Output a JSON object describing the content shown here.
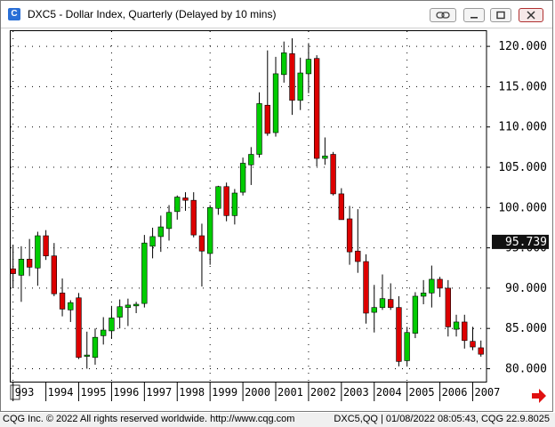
{
  "window": {
    "title": "DXC5 - Dollar Index, Quarterly (Delayed by 10 mins)",
    "icons": [
      "chain-link-icon",
      "minimize-icon",
      "restore-icon",
      "close-icon"
    ]
  },
  "footer": {
    "copyright": "CQG Inc. © 2022 All rights reserved worldwide. http://www.cqg.com",
    "status": "DXC5,QQ | 01/08/2022 08:05:43, CQG 22.9.8025"
  },
  "chart_data": {
    "type": "candlestick",
    "title": "DXC5 - Dollar Index, Quarterly (Delayed by 10 mins)",
    "y_ticks": [
      "120.000",
      "115.000",
      "110.000",
      "105.000",
      "100.000",
      "95.000",
      "90.000",
      "85.000",
      "80.000"
    ],
    "y_tick_values": [
      120,
      115,
      110,
      105,
      100,
      95,
      90,
      85,
      80
    ],
    "ylim": [
      78.4,
      122.0
    ],
    "x_tick_labels": [
      "993",
      "1994",
      "1995",
      "1996",
      "1997",
      "1998",
      "1999",
      "2000",
      "2001",
      "2002",
      "2003",
      "2004",
      "2005",
      "2006",
      "2007"
    ],
    "x_tick_years": [
      1993,
      1994,
      1995,
      1996,
      1997,
      1998,
      1999,
      2000,
      2001,
      2002,
      2003,
      2004,
      2005,
      2006,
      2007
    ],
    "xlim": [
      1992.9,
      2007.42
    ],
    "last_price": "95.739",
    "last_price_value": 95.739,
    "colors": {
      "up": "#00cc00",
      "down": "#dd0000",
      "wick": "#000000",
      "grid": "#000000",
      "last_price_bg": "#111111",
      "arrow": "#e01010"
    },
    "candles": [
      {
        "t": 1993.0,
        "o": 92.4,
        "h": 95.3,
        "l": 90.0,
        "c": 91.8
      },
      {
        "t": 1993.25,
        "o": 91.6,
        "h": 95.2,
        "l": 88.3,
        "c": 93.6
      },
      {
        "t": 1993.5,
        "o": 93.6,
        "h": 96.1,
        "l": 91.5,
        "c": 92.6
      },
      {
        "t": 1993.75,
        "o": 92.5,
        "h": 97.0,
        "l": 90.3,
        "c": 96.5
      },
      {
        "t": 1994.0,
        "o": 96.5,
        "h": 97.2,
        "l": 93.5,
        "c": 94.0
      },
      {
        "t": 1994.25,
        "o": 94.0,
        "h": 95.6,
        "l": 89.0,
        "c": 89.3
      },
      {
        "t": 1994.5,
        "o": 89.4,
        "h": 91.2,
        "l": 86.5,
        "c": 87.4
      },
      {
        "t": 1994.75,
        "o": 87.3,
        "h": 88.5,
        "l": 85.8,
        "c": 88.2
      },
      {
        "t": 1995.0,
        "o": 88.8,
        "h": 89.4,
        "l": 81.2,
        "c": 81.4
      },
      {
        "t": 1995.25,
        "o": 81.6,
        "h": 84.6,
        "l": 80.0,
        "c": 81.7
      },
      {
        "t": 1995.5,
        "o": 81.4,
        "h": 85.0,
        "l": 80.5,
        "c": 83.9
      },
      {
        "t": 1995.75,
        "o": 84.1,
        "h": 86.4,
        "l": 83.0,
        "c": 84.8
      },
      {
        "t": 1996.0,
        "o": 84.7,
        "h": 87.8,
        "l": 83.7,
        "c": 86.3
      },
      {
        "t": 1996.25,
        "o": 86.4,
        "h": 88.6,
        "l": 85.0,
        "c": 87.7
      },
      {
        "t": 1996.5,
        "o": 87.6,
        "h": 88.7,
        "l": 85.3,
        "c": 87.9
      },
      {
        "t": 1996.75,
        "o": 87.8,
        "h": 88.3,
        "l": 86.9,
        "c": 88.0
      },
      {
        "t": 1997.0,
        "o": 88.1,
        "h": 96.6,
        "l": 87.6,
        "c": 95.6
      },
      {
        "t": 1997.25,
        "o": 95.2,
        "h": 97.5,
        "l": 93.7,
        "c": 96.4
      },
      {
        "t": 1997.5,
        "o": 96.4,
        "h": 99.0,
        "l": 94.5,
        "c": 97.6
      },
      {
        "t": 1997.75,
        "o": 97.4,
        "h": 100.3,
        "l": 95.9,
        "c": 99.4
      },
      {
        "t": 1998.0,
        "o": 99.5,
        "h": 101.5,
        "l": 98.5,
        "c": 101.3
      },
      {
        "t": 1998.25,
        "o": 101.2,
        "h": 101.9,
        "l": 99.6,
        "c": 100.9
      },
      {
        "t": 1998.5,
        "o": 100.9,
        "h": 101.9,
        "l": 96.3,
        "c": 96.6
      },
      {
        "t": 1998.75,
        "o": 96.5,
        "h": 98.0,
        "l": 90.2,
        "c": 94.6
      },
      {
        "t": 1999.0,
        "o": 94.3,
        "h": 100.3,
        "l": 92.9,
        "c": 100.0
      },
      {
        "t": 1999.25,
        "o": 99.9,
        "h": 102.7,
        "l": 99.1,
        "c": 102.6
      },
      {
        "t": 1999.5,
        "o": 102.6,
        "h": 103.1,
        "l": 98.3,
        "c": 99.0
      },
      {
        "t": 1999.75,
        "o": 99.0,
        "h": 102.3,
        "l": 97.9,
        "c": 101.8
      },
      {
        "t": 2000.0,
        "o": 101.9,
        "h": 106.2,
        "l": 101.5,
        "c": 105.5
      },
      {
        "t": 2000.25,
        "o": 105.3,
        "h": 107.5,
        "l": 102.8,
        "c": 106.6
      },
      {
        "t": 2000.5,
        "o": 106.6,
        "h": 114.3,
        "l": 106.2,
        "c": 112.9
      },
      {
        "t": 2000.75,
        "o": 112.7,
        "h": 119.5,
        "l": 108.9,
        "c": 109.2
      },
      {
        "t": 2001.0,
        "o": 109.3,
        "h": 118.7,
        "l": 108.8,
        "c": 116.6
      },
      {
        "t": 2001.25,
        "o": 116.5,
        "h": 120.6,
        "l": 115.5,
        "c": 119.2
      },
      {
        "t": 2001.5,
        "o": 119.1,
        "h": 121.0,
        "l": 111.5,
        "c": 113.3
      },
      {
        "t": 2001.75,
        "o": 113.3,
        "h": 118.6,
        "l": 112.1,
        "c": 116.7
      },
      {
        "t": 2002.0,
        "o": 116.6,
        "h": 120.4,
        "l": 114.2,
        "c": 118.4
      },
      {
        "t": 2002.25,
        "o": 118.5,
        "h": 118.9,
        "l": 105.1,
        "c": 106.1
      },
      {
        "t": 2002.5,
        "o": 106.1,
        "h": 108.7,
        "l": 105.3,
        "c": 106.4
      },
      {
        "t": 2002.75,
        "o": 106.6,
        "h": 106.9,
        "l": 101.5,
        "c": 101.7
      },
      {
        "t": 2003.0,
        "o": 101.7,
        "h": 102.4,
        "l": 98.5,
        "c": 98.5
      },
      {
        "t": 2003.25,
        "o": 98.6,
        "h": 100.2,
        "l": 92.9,
        "c": 94.5
      },
      {
        "t": 2003.5,
        "o": 94.6,
        "h": 99.8,
        "l": 91.9,
        "c": 93.3
      },
      {
        "t": 2003.75,
        "o": 93.3,
        "h": 94.2,
        "l": 85.6,
        "c": 86.9
      },
      {
        "t": 2004.0,
        "o": 87.0,
        "h": 90.4,
        "l": 84.5,
        "c": 87.6
      },
      {
        "t": 2004.25,
        "o": 87.6,
        "h": 91.7,
        "l": 87.3,
        "c": 88.7
      },
      {
        "t": 2004.5,
        "o": 88.6,
        "h": 90.6,
        "l": 87.3,
        "c": 87.6
      },
      {
        "t": 2004.75,
        "o": 87.6,
        "h": 89.0,
        "l": 80.3,
        "c": 80.9
      },
      {
        "t": 2005.0,
        "o": 81.0,
        "h": 85.2,
        "l": 80.4,
        "c": 84.5
      },
      {
        "t": 2005.25,
        "o": 84.4,
        "h": 89.5,
        "l": 83.8,
        "c": 89.0
      },
      {
        "t": 2005.5,
        "o": 89.0,
        "h": 91.0,
        "l": 88.0,
        "c": 89.4
      },
      {
        "t": 2005.75,
        "o": 89.4,
        "h": 92.8,
        "l": 87.6,
        "c": 91.1
      },
      {
        "t": 2006.0,
        "o": 91.1,
        "h": 91.4,
        "l": 88.9,
        "c": 90.0
      },
      {
        "t": 2006.25,
        "o": 90.0,
        "h": 91.0,
        "l": 84.0,
        "c": 85.2
      },
      {
        "t": 2006.5,
        "o": 84.9,
        "h": 86.7,
        "l": 84.0,
        "c": 85.8
      },
      {
        "t": 2006.75,
        "o": 85.8,
        "h": 86.7,
        "l": 82.5,
        "c": 83.5
      },
      {
        "t": 2007.0,
        "o": 83.4,
        "h": 85.2,
        "l": 82.3,
        "c": 82.7
      },
      {
        "t": 2007.25,
        "o": 82.6,
        "h": 83.5,
        "l": 81.5,
        "c": 81.8
      }
    ]
  }
}
